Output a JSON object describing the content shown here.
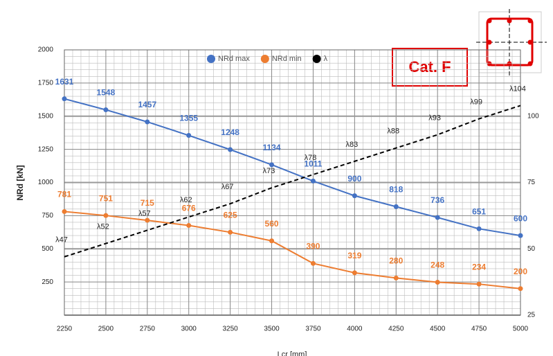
{
  "chart_data": {
    "type": "line",
    "annotation": "Cat. F",
    "x_label": "Lcr [mm]",
    "y_label": "NRd [kN]",
    "x": [
      2250,
      2500,
      2750,
      3000,
      3250,
      3500,
      3750,
      4000,
      4250,
      4500,
      4750,
      5000
    ],
    "xlim": [
      2250,
      5000
    ],
    "xticks": [
      2250,
      2500,
      2750,
      3000,
      3250,
      3500,
      3750,
      4000,
      4250,
      4500,
      4750,
      5000
    ],
    "ylim": [
      0,
      2000
    ],
    "yticks": [
      250,
      500,
      750,
      1000,
      1250,
      1500,
      1750,
      2000
    ],
    "y2lim": [
      25,
      125
    ],
    "y2ticks": [
      25,
      50,
      75,
      100
    ],
    "grid": true,
    "legend": "top",
    "series": [
      {
        "name": "NRd max",
        "color": "#4472c4",
        "values": [
          1631,
          1548,
          1457,
          1355,
          1248,
          1134,
          1011,
          900,
          818,
          736,
          651,
          600
        ]
      },
      {
        "name": "NRd min",
        "color": "#ed7d31",
        "values": [
          781,
          751,
          715,
          676,
          625,
          560,
          390,
          319,
          280,
          248,
          234,
          200
        ]
      },
      {
        "name": "λ",
        "color": "#000000",
        "axis": "y2",
        "dashed": true,
        "values": [
          47,
          52,
          57,
          62,
          67,
          73,
          78,
          83,
          88,
          93,
          99,
          104
        ],
        "value_labels": [
          "λ47",
          "λ52",
          "λ57",
          "λ62",
          "λ67",
          "λ73",
          "λ78",
          "λ83",
          "λ88",
          "λ93",
          "λ99",
          "λ104"
        ]
      }
    ]
  }
}
